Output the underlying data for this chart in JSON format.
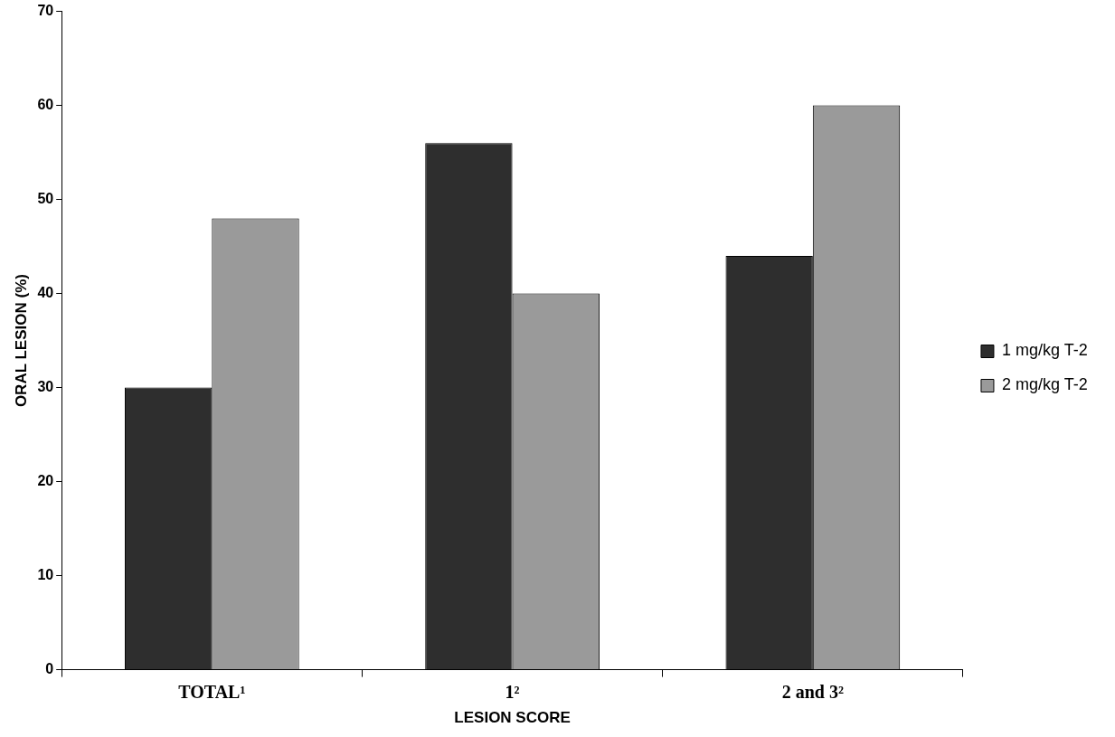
{
  "chart_data": {
    "type": "bar",
    "xlabel": "LESION SCORE",
    "ylabel": "ORAL LESION (%)",
    "categories": [
      "TOTAL¹",
      "1²",
      "2 and 3²"
    ],
    "series": [
      {
        "name": "1 mg/kg T-2",
        "color": "#2e2e2e",
        "values": [
          30,
          56,
          44
        ]
      },
      {
        "name": "2 mg/kg T-2",
        "color": "#9a9a9a",
        "values": [
          48,
          40,
          60
        ]
      }
    ],
    "ylim": [
      0,
      70
    ],
    "yticks": [
      0,
      10,
      20,
      30,
      40,
      50,
      60,
      70
    ],
    "grid": false,
    "legend": "right"
  }
}
